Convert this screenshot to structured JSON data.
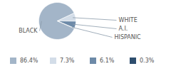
{
  "chart_data": {
    "type": "pie",
    "categories": [
      "BLACK",
      "WHITE",
      "A.I.",
      "HISPANIC"
    ],
    "values": [
      86.4,
      7.3,
      6.1,
      0.3
    ],
    "value_labels": [
      "86.4%",
      "7.3%",
      "6.1%",
      "0.3%"
    ],
    "colors": [
      "#a3b5c8",
      "#d3dde8",
      "#6d8aa8",
      "#2e4e6e"
    ],
    "legend": "bottom"
  }
}
